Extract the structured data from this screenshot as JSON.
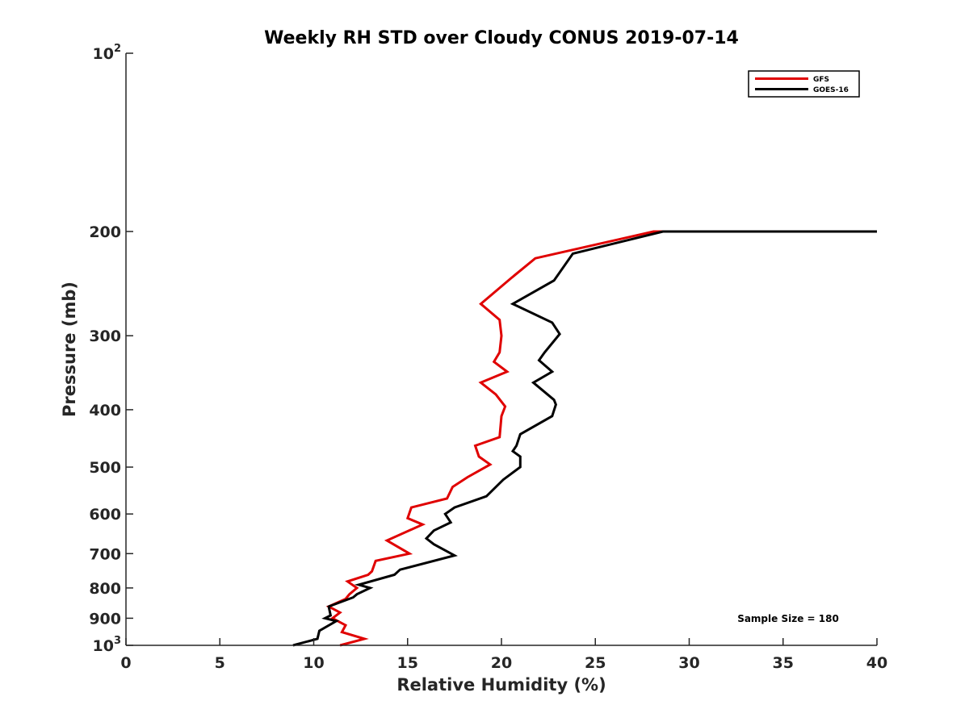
{
  "chart_data": {
    "type": "line",
    "title": "Weekly RH STD over Cloudy CONUS 2019-07-14",
    "xlabel": "Relative Humidity (%)",
    "ylabel": "Pressure (mb)",
    "xlim": [
      0,
      40
    ],
    "ylim": [
      100,
      1000
    ],
    "y_scale": "log",
    "y_reversed": true,
    "x_ticks": [
      0,
      5,
      10,
      15,
      20,
      25,
      30,
      35,
      40
    ],
    "y_ticks": [
      {
        "value": 100,
        "base": "10",
        "exp": "2"
      },
      {
        "value": 200,
        "label": "200"
      },
      {
        "value": 300,
        "label": "300"
      },
      {
        "value": 400,
        "label": "400"
      },
      {
        "value": 500,
        "label": "500"
      },
      {
        "value": 600,
        "label": "600"
      },
      {
        "value": 700,
        "label": "700"
      },
      {
        "value": 800,
        "label": "800"
      },
      {
        "value": 900,
        "label": "900"
      },
      {
        "value": 1000,
        "base": "10",
        "exp": "3"
      }
    ],
    "grid": false,
    "legend_position": "top-right",
    "annotation": "Sample Size = 180",
    "series": [
      {
        "name": "GFS",
        "color": "#e00000",
        "points": [
          [
            40.0,
            200
          ],
          [
            28.1,
            200
          ],
          [
            21.8,
            222
          ],
          [
            20.5,
            240
          ],
          [
            18.9,
            265
          ],
          [
            19.9,
            282
          ],
          [
            20.0,
            300
          ],
          [
            19.9,
            320
          ],
          [
            19.6,
            332
          ],
          [
            20.3,
            345
          ],
          [
            18.9,
            360
          ],
          [
            19.7,
            377
          ],
          [
            20.2,
            395
          ],
          [
            20.0,
            410
          ],
          [
            19.9,
            445
          ],
          [
            18.6,
            460
          ],
          [
            18.8,
            480
          ],
          [
            19.4,
            495
          ],
          [
            18.2,
            520
          ],
          [
            17.4,
            540
          ],
          [
            17.1,
            565
          ],
          [
            15.2,
            585
          ],
          [
            15.0,
            610
          ],
          [
            15.8,
            625
          ],
          [
            13.9,
            665
          ],
          [
            15.1,
            700
          ],
          [
            13.3,
            720
          ],
          [
            13.1,
            750
          ],
          [
            12.9,
            760
          ],
          [
            11.8,
            780
          ],
          [
            12.3,
            800
          ],
          [
            11.9,
            820
          ],
          [
            11.7,
            835
          ],
          [
            10.8,
            860
          ],
          [
            11.4,
            880
          ],
          [
            11.0,
            900
          ],
          [
            11.7,
            925
          ],
          [
            11.5,
            950
          ],
          [
            12.7,
            975
          ],
          [
            11.4,
            1000
          ]
        ]
      },
      {
        "name": "GOES-16",
        "color": "#000000",
        "points": [
          [
            40.0,
            200
          ],
          [
            28.6,
            200
          ],
          [
            23.8,
            218
          ],
          [
            22.8,
            242
          ],
          [
            20.6,
            265
          ],
          [
            22.7,
            285
          ],
          [
            23.1,
            298
          ],
          [
            22.3,
            320
          ],
          [
            22.0,
            330
          ],
          [
            22.7,
            345
          ],
          [
            21.7,
            360
          ],
          [
            22.8,
            385
          ],
          [
            22.9,
            392
          ],
          [
            22.7,
            410
          ],
          [
            21.0,
            440
          ],
          [
            20.8,
            460
          ],
          [
            20.6,
            470
          ],
          [
            21.0,
            480
          ],
          [
            21.0,
            500
          ],
          [
            20.1,
            525
          ],
          [
            19.2,
            560
          ],
          [
            17.5,
            585
          ],
          [
            17.0,
            600
          ],
          [
            17.3,
            620
          ],
          [
            16.4,
            640
          ],
          [
            16.0,
            660
          ],
          [
            16.4,
            675
          ],
          [
            17.5,
            705
          ],
          [
            14.6,
            745
          ],
          [
            14.3,
            760
          ],
          [
            12.4,
            790
          ],
          [
            13.0,
            800
          ],
          [
            12.3,
            820
          ],
          [
            12.1,
            830
          ],
          [
            10.8,
            860
          ],
          [
            10.9,
            890
          ],
          [
            10.6,
            900
          ],
          [
            11.2,
            910
          ],
          [
            10.3,
            945
          ],
          [
            10.2,
            975
          ],
          [
            8.9,
            1000
          ]
        ]
      }
    ]
  }
}
